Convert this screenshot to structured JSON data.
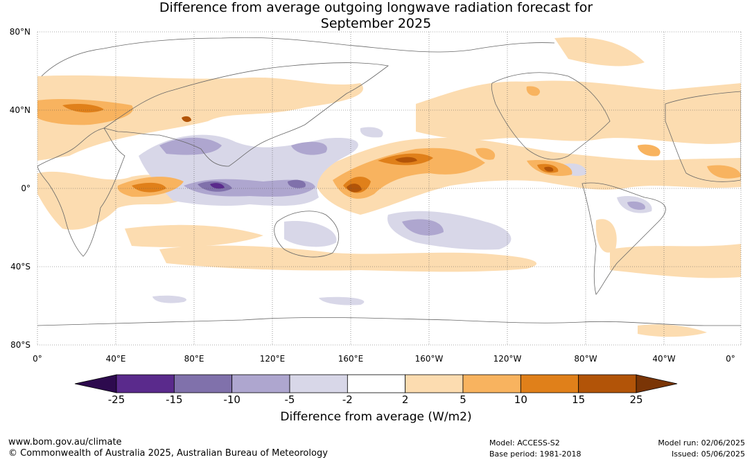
{
  "title": {
    "line1": "Difference from average outgoing longwave radiation forecast for",
    "line2": "September 2025"
  },
  "axes": {
    "lat_labels": [
      "80°N",
      "40°N",
      "0°",
      "40°S",
      "80°S"
    ],
    "lon_labels": [
      "0°",
      "40°E",
      "80°E",
      "120°E",
      "160°E",
      "160°W",
      "120°W",
      "80°W",
      "40°W",
      "0°"
    ]
  },
  "colorbar": {
    "ticks": [
      "-25",
      "-15",
      "-10",
      "-5",
      "-2",
      "2",
      "5",
      "10",
      "15",
      "25"
    ],
    "colors": [
      "#2d0a4e",
      "#5a2a8c",
      "#8071ab",
      "#aea6cf",
      "#d8d7e8",
      "#ffffff",
      "#fcdcb0",
      "#f8b35f",
      "#e0801a",
      "#b25408",
      "#7a3506"
    ],
    "label": "Difference from average (W/m2)"
  },
  "footer": {
    "website": "www.bom.gov.au/climate",
    "copyright": "© Commonwealth of Australia 2025, Australian Bureau of Meteorology",
    "model": "Model: ACCESS-S2",
    "base_period": "Base period: 1981-2018",
    "model_run": "Model run: 02/06/2025",
    "issued": "Issued: 05/06/2025"
  }
}
